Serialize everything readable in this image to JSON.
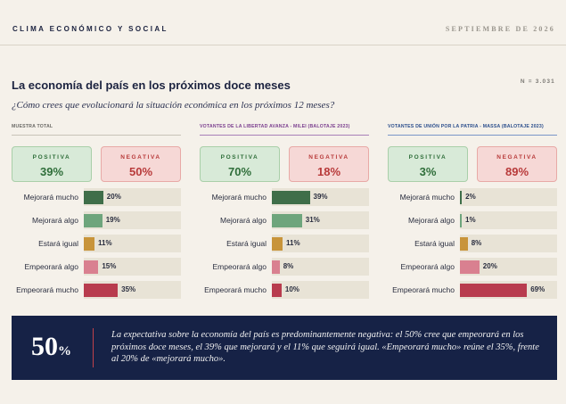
{
  "header": {
    "brand": "CLIMA ECONÓMICO Y SOCIAL",
    "date": "SEPTIEMBRE DE 2026"
  },
  "title": "La economía del país en los próximos doce meses",
  "n_label": "N = 3.031",
  "subtitle": "¿Cómo crees que evolucionará la situación económica en los próximos 12 meses?",
  "colors": {
    "mejorara_mucho": "#3f6e49",
    "mejorara_algo": "#6ea57c",
    "estara_igual": "#c8943a",
    "empeorara_algo": "#d98090",
    "empeorara_mucho": "#b83c4e",
    "track": "#e8e3d6"
  },
  "chart_data": [
    {
      "type": "bar",
      "panel": "MUESTRA TOTAL",
      "positive": {
        "label": "POSITIVA",
        "value": "39%"
      },
      "negative": {
        "label": "NEGATIVA",
        "value": "50%"
      },
      "categories": [
        "Mejorará mucho",
        "Mejorará algo",
        "Estará igual",
        "Empeorará algo",
        "Empeorará mucho"
      ],
      "values": [
        20,
        19,
        11,
        15,
        35
      ],
      "xlim": [
        0,
        100
      ]
    },
    {
      "type": "bar",
      "panel": "VOTANTES DE LA LIBERTAD AVANZA - MILEI (BALOTAJE 2023)",
      "positive": {
        "label": "POSITIVA",
        "value": "70%"
      },
      "negative": {
        "label": "NEGATIVA",
        "value": "18%"
      },
      "categories": [
        "Mejorará mucho",
        "Mejorará algo",
        "Estará igual",
        "Empeorará algo",
        "Empeorará mucho"
      ],
      "values": [
        39,
        31,
        11,
        8,
        10
      ],
      "xlim": [
        0,
        100
      ]
    },
    {
      "type": "bar",
      "panel": "VOTANTES DE UNIÓN POR LA PATRIA - MASSA (BALOTAJE 2023)",
      "positive": {
        "label": "POSITIVA",
        "value": "3%"
      },
      "negative": {
        "label": "NEGATIVA",
        "value": "89%"
      },
      "categories": [
        "Mejorará mucho",
        "Mejorará algo",
        "Estará igual",
        "Empeorará algo",
        "Empeorará mucho"
      ],
      "values": [
        2,
        1,
        8,
        20,
        69
      ],
      "xlim": [
        0,
        100
      ]
    }
  ],
  "footer": {
    "big_number": "50",
    "big_unit": "%",
    "text": "La expectativa sobre la economía del país es predominantemente negativa: el 50% cree que empeorará en los próximos doce meses, el 39% que mejorará y el 11% que seguirá igual. «Empeorará mucho» reúne el 35%, frente al 20% de «mejorará mucho»."
  }
}
